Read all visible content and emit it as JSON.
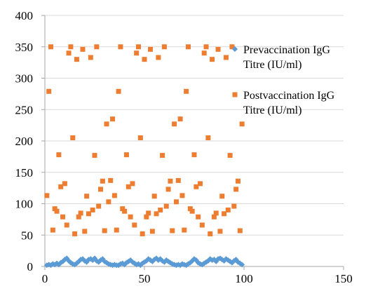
{
  "chart_data": {
    "type": "scatter",
    "xlim": [
      0,
      150
    ],
    "ylim": [
      0,
      400
    ],
    "x_ticks": [
      0,
      50,
      100,
      150
    ],
    "y_ticks": [
      0,
      50,
      100,
      150,
      200,
      250,
      300,
      350,
      400
    ],
    "x_tick_labels": [
      "0",
      "50",
      "100",
      "150"
    ],
    "y_tick_labels": [
      "0",
      "50",
      "100",
      "150",
      "200",
      "250",
      "300",
      "350",
      "400"
    ],
    "grid": "horizontal",
    "legend_position": "right",
    "series": [
      {
        "name": "Prevaccination IgG Titre (IU/ml)",
        "legend_lines": [
          "Prevaccination IgG",
          "Titre (IU/ml)"
        ],
        "color": "#5B9BD5",
        "marker": "diamond",
        "points": [
          [
            1,
            2
          ],
          [
            2,
            3
          ],
          [
            3,
            2
          ],
          [
            4,
            4
          ],
          [
            5,
            3
          ],
          [
            6,
            5
          ],
          [
            7,
            3
          ],
          [
            8,
            6
          ],
          [
            9,
            8
          ],
          [
            10,
            11
          ],
          [
            11,
            13
          ],
          [
            12,
            9
          ],
          [
            13,
            6
          ],
          [
            14,
            4
          ],
          [
            15,
            3
          ],
          [
            16,
            5
          ],
          [
            17,
            8
          ],
          [
            18,
            11
          ],
          [
            19,
            12
          ],
          [
            20,
            9
          ],
          [
            21,
            7
          ],
          [
            22,
            11
          ],
          [
            23,
            12
          ],
          [
            24,
            10
          ],
          [
            25,
            13
          ],
          [
            26,
            9
          ],
          [
            27,
            7
          ],
          [
            28,
            10
          ],
          [
            29,
            12
          ],
          [
            30,
            8
          ],
          [
            31,
            6
          ],
          [
            32,
            4
          ],
          [
            33,
            3
          ],
          [
            34,
            2
          ],
          [
            35,
            3
          ],
          [
            36,
            2
          ],
          [
            37,
            2
          ],
          [
            38,
            4
          ],
          [
            39,
            5
          ],
          [
            40,
            3
          ],
          [
            41,
            6
          ],
          [
            42,
            8
          ],
          [
            43,
            10
          ],
          [
            44,
            7
          ],
          [
            45,
            5
          ],
          [
            46,
            3
          ],
          [
            47,
            4
          ],
          [
            48,
            2
          ],
          [
            49,
            5
          ],
          [
            50,
            7
          ],
          [
            51,
            9
          ],
          [
            52,
            12
          ],
          [
            53,
            10
          ],
          [
            54,
            8
          ],
          [
            55,
            11
          ],
          [
            56,
            13
          ],
          [
            57,
            10
          ],
          [
            58,
            12
          ],
          [
            59,
            9
          ],
          [
            60,
            7
          ],
          [
            61,
            10
          ],
          [
            62,
            8
          ],
          [
            63,
            6
          ],
          [
            64,
            4
          ],
          [
            65,
            3
          ],
          [
            66,
            2
          ],
          [
            67,
            3
          ],
          [
            68,
            2
          ],
          [
            69,
            4
          ],
          [
            70,
            3
          ],
          [
            71,
            2
          ],
          [
            72,
            4
          ],
          [
            73,
            6
          ],
          [
            74,
            9
          ],
          [
            75,
            12
          ],
          [
            76,
            10
          ],
          [
            77,
            6
          ],
          [
            78,
            4
          ],
          [
            79,
            3
          ],
          [
            80,
            5
          ],
          [
            81,
            7
          ],
          [
            82,
            9
          ],
          [
            83,
            12
          ],
          [
            84,
            10
          ],
          [
            85,
            11
          ],
          [
            86,
            8
          ],
          [
            87,
            12
          ],
          [
            88,
            13
          ],
          [
            89,
            11
          ],
          [
            90,
            9
          ],
          [
            91,
            12
          ],
          [
            92,
            10
          ],
          [
            93,
            8
          ],
          [
            94,
            6
          ],
          [
            95,
            9
          ],
          [
            96,
            11
          ],
          [
            97,
            7
          ],
          [
            98,
            5
          ],
          [
            99,
            3
          ]
        ]
      },
      {
        "name": "Postvaccination IgG Titre (IU/ml)",
        "legend_lines": [
          "Postvaccination IgG",
          "Titre (IU/ml)"
        ],
        "color": "#ED7D31",
        "marker": "square",
        "points": [
          [
            1,
            113
          ],
          [
            2,
            279
          ],
          [
            3,
            350
          ],
          [
            4,
            58
          ],
          [
            5,
            92
          ],
          [
            6,
            88
          ],
          [
            7,
            178
          ],
          [
            8,
            127
          ],
          [
            9,
            79
          ],
          [
            10,
            132
          ],
          [
            11,
            66
          ],
          [
            12,
            340
          ],
          [
            13,
            350
          ],
          [
            14,
            205
          ],
          [
            15,
            52
          ],
          [
            16,
            330
          ],
          [
            17,
            79
          ],
          [
            18,
            85
          ],
          [
            19,
            346
          ],
          [
            20,
            56
          ],
          [
            21,
            112
          ],
          [
            22,
            84
          ],
          [
            23,
            333
          ],
          [
            24,
            90
          ],
          [
            25,
            177
          ],
          [
            26,
            350
          ],
          [
            27,
            96
          ],
          [
            28,
            123
          ],
          [
            29,
            136
          ],
          [
            30,
            57
          ],
          [
            31,
            227
          ],
          [
            32,
            103
          ],
          [
            33,
            137
          ],
          [
            34,
            235
          ],
          [
            35,
            113
          ],
          [
            36,
            58
          ],
          [
            37,
            279
          ],
          [
            38,
            350
          ],
          [
            39,
            92
          ],
          [
            40,
            88
          ],
          [
            41,
            178
          ],
          [
            42,
            127
          ],
          [
            43,
            79
          ],
          [
            44,
            132
          ],
          [
            45,
            66
          ],
          [
            46,
            340
          ],
          [
            47,
            350
          ],
          [
            48,
            205
          ],
          [
            49,
            52
          ],
          [
            50,
            330
          ],
          [
            51,
            79
          ],
          [
            52,
            85
          ],
          [
            53,
            346
          ],
          [
            54,
            56
          ],
          [
            55,
            112
          ],
          [
            56,
            84
          ],
          [
            57,
            333
          ],
          [
            58,
            90
          ],
          [
            59,
            177
          ],
          [
            60,
            350
          ],
          [
            61,
            96
          ],
          [
            62,
            123
          ],
          [
            63,
            136
          ],
          [
            64,
            57
          ],
          [
            65,
            227
          ],
          [
            66,
            103
          ],
          [
            67,
            137
          ],
          [
            68,
            235
          ],
          [
            69,
            113
          ],
          [
            70,
            58
          ],
          [
            71,
            279
          ],
          [
            72,
            350
          ],
          [
            73,
            92
          ],
          [
            74,
            88
          ],
          [
            75,
            178
          ],
          [
            76,
            127
          ],
          [
            77,
            79
          ],
          [
            78,
            132
          ],
          [
            79,
            66
          ],
          [
            80,
            340
          ],
          [
            81,
            350
          ],
          [
            82,
            205
          ],
          [
            83,
            52
          ],
          [
            84,
            330
          ],
          [
            85,
            79
          ],
          [
            86,
            85
          ],
          [
            87,
            346
          ],
          [
            88,
            56
          ],
          [
            89,
            112
          ],
          [
            90,
            84
          ],
          [
            91,
            333
          ],
          [
            92,
            90
          ],
          [
            93,
            177
          ],
          [
            94,
            350
          ],
          [
            95,
            96
          ],
          [
            96,
            123
          ],
          [
            97,
            136
          ],
          [
            98,
            57
          ],
          [
            99,
            227
          ]
        ]
      }
    ]
  }
}
